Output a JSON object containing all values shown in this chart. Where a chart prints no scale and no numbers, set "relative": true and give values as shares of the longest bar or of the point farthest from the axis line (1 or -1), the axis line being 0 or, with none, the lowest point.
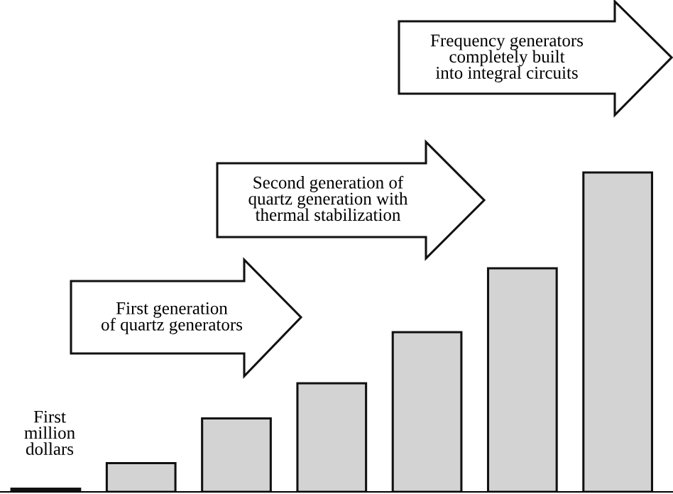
{
  "chart_data": {
    "type": "bar",
    "relative": true,
    "categories": [
      null,
      null,
      null,
      null,
      null,
      null,
      null
    ],
    "values": [
      0.01,
      0.09,
      0.23,
      0.34,
      0.5,
      0.7,
      1
    ],
    "colors": [
      "#111111",
      "#d3d3d3",
      "#d3d3d3",
      "#d3d3d3",
      "#d3d3d3",
      "#d3d3d3",
      "#d3d3d3"
    ],
    "annotations": [
      "First\nmillion\ndollars",
      "First generation\nof quartz generators",
      "Second generation of\nquartz generation with\nthermal stabilization",
      "Frequency generators\ncompletely built\ninto integral circuits"
    ],
    "grid": false,
    "legend": false
  }
}
